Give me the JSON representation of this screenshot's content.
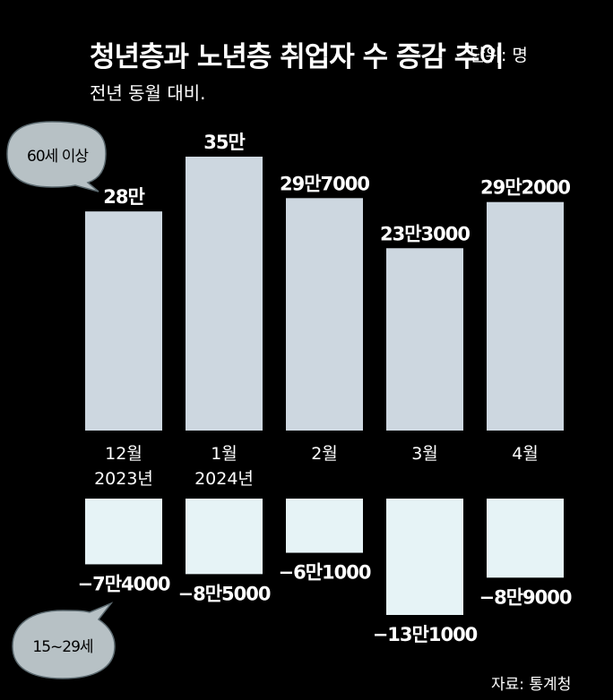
{
  "title": "청년층과 노년층 취업자 수 증감 추이",
  "unit_note": "단위: 명",
  "subtitle": "전년 동월 대비.",
  "source": "자료: 통계청",
  "colors": {
    "background": "#000000",
    "positive_bar": "#cdd7e0",
    "negative_bar": "#e6f3f6",
    "bubble": "#b7c1c5",
    "text": "#ffffff"
  },
  "chart_data": {
    "type": "bar",
    "categories": [
      "12월",
      "1월",
      "2월",
      "3월",
      "4월"
    ],
    "year_labels": [
      "2023년",
      "2024년",
      "",
      "",
      ""
    ],
    "series": [
      {
        "name": "60세 이상",
        "values": [
          280000,
          350000,
          297000,
          233000,
          292000
        ],
        "value_labels": [
          "28만",
          "35만",
          "29만7000",
          "23만3000",
          "29만2000"
        ]
      },
      {
        "name": "15~29세",
        "values": [
          -74000,
          -85000,
          -61000,
          -131000,
          -89000
        ],
        "value_labels": [
          "−7만4000",
          "−8만5000",
          "−6만1000",
          "−13만1000",
          "−8만9000"
        ]
      }
    ]
  }
}
